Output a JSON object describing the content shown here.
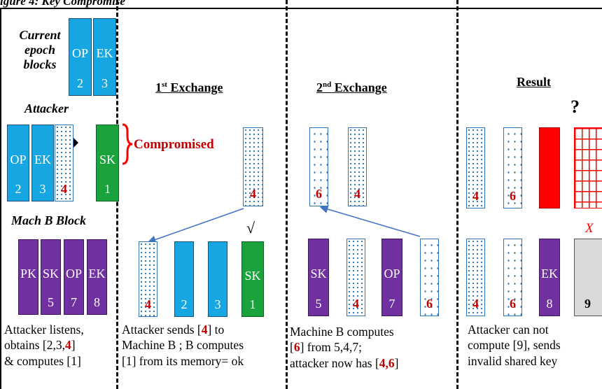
{
  "title": "igure 4: Key Compromise",
  "panel1": {
    "current_label": "Current epoch blocks",
    "current_blocks": [
      {
        "label": "OP",
        "num": "2"
      },
      {
        "label": "EK",
        "num": "3"
      }
    ],
    "attacker_label": "Attacker",
    "attacker_blocks": [
      {
        "label": "OP",
        "num": "2"
      },
      {
        "label": "EK",
        "num": "3"
      },
      {
        "num": "4"
      }
    ],
    "attacker_result": {
      "label": "SK",
      "num": "1"
    },
    "compromised": "Compromised",
    "machb_label": "Mach B Block",
    "machb_blocks": [
      {
        "label": "PK",
        "num": ""
      },
      {
        "label": "SK",
        "num": "5"
      },
      {
        "label": "OP",
        "num": "7"
      },
      {
        "label": "EK",
        "num": "8"
      }
    ],
    "caption": [
      "Attacker listens,",
      "obtains [2,3,",
      "4",
      "]",
      "& computes [1]"
    ]
  },
  "panel2": {
    "header_ord": "1",
    "header_sup": "st",
    "header_rest": " Exchange",
    "top_num": "4",
    "check": "√",
    "bottom_blocks": [
      {
        "num": "4"
      },
      {
        "num": "2"
      },
      {
        "num": "3"
      },
      {
        "label": "SK",
        "num": "1"
      }
    ],
    "caption": [
      "Attacker sends [",
      "4",
      "] to",
      "Machine B ; B computes",
      "[1] from its memory= ok"
    ]
  },
  "panel3": {
    "header_ord": "2",
    "header_sup": "nd",
    "header_rest": " Exchange",
    "top_nums": [
      "6",
      "4"
    ],
    "bottom_blocks": [
      {
        "label": "SK",
        "num": "5"
      },
      {
        "num": "4"
      },
      {
        "label": "OP",
        "num": "7"
      },
      {
        "num": "6"
      }
    ],
    "caption": [
      "Machine B computes",
      "[",
      "6",
      "] from 5,4,7;",
      "attacker now has [",
      "4,6",
      "]"
    ]
  },
  "panel4": {
    "header": "Result",
    "question": "?",
    "x_mark": "X",
    "top_nums": [
      "4",
      "6"
    ],
    "bottom_blocks": [
      {
        "num": "4"
      },
      {
        "num": "6"
      },
      {
        "label": "EK",
        "num": "8"
      },
      {
        "num": "9"
      }
    ],
    "caption": [
      "Attacker can not",
      "compute [9], sends",
      "invalid shared key"
    ]
  },
  "colors": {
    "blue": "#16a7e3",
    "purple": "#7030a0",
    "green": "#1aa33c",
    "red": "#ff0000",
    "gray": "#d9d9d9",
    "accent_red": "#c00000"
  }
}
